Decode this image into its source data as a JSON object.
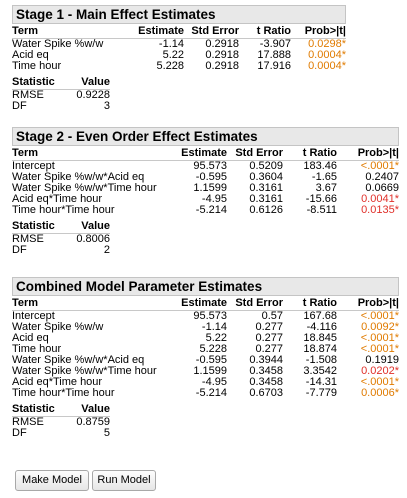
{
  "stage1": {
    "title": "Stage 1 - Main Effect Estimates",
    "headers": [
      "Term",
      "Estimate",
      "Std Error",
      "t Ratio",
      "Prob>|t|"
    ],
    "rows": [
      {
        "term": "Water Spike %w/w",
        "estimate": "-1.14",
        "se": "0.2918",
        "t": "-3.907",
        "p": "0.0298*"
      },
      {
        "term": "Acid eq",
        "estimate": "5.22",
        "se": "0.2918",
        "t": "17.888",
        "p": "0.0004*"
      },
      {
        "term": "Time hour",
        "estimate": "5.228",
        "se": "0.2918",
        "t": "17.916",
        "p": "0.0004*"
      }
    ],
    "stat_headers": [
      "Statistic",
      "Value"
    ],
    "stats": [
      {
        "k": "RMSE",
        "v": "0.9228"
      },
      {
        "k": "DF",
        "v": "3"
      }
    ]
  },
  "stage2": {
    "title": "Stage 2 - Even Order Effect Estimates",
    "headers": [
      "Term",
      "Estimate",
      "Std Error",
      "t Ratio",
      "Prob>|t|"
    ],
    "rows": [
      {
        "term": "Intercept",
        "estimate": "95.573",
        "se": "0.5209",
        "t": "183.46",
        "p": "<.0001*"
      },
      {
        "term": "Water Spike %w/w*Acid eq",
        "estimate": "-0.595",
        "se": "0.3604",
        "t": "-1.65",
        "p": "0.2407"
      },
      {
        "term": "Water Spike %w/w*Time hour",
        "estimate": "1.1599",
        "se": "0.3161",
        "t": "3.67",
        "p": "0.0669"
      },
      {
        "term": "Acid eq*Time hour",
        "estimate": "-4.95",
        "se": "0.3161",
        "t": "-15.66",
        "p": "0.0041*"
      },
      {
        "term": "Time hour*Time hour",
        "estimate": "-5.214",
        "se": "0.6126",
        "t": "-8.511",
        "p": "0.0135*"
      }
    ],
    "stat_headers": [
      "Statistic",
      "Value"
    ],
    "stats": [
      {
        "k": "RMSE",
        "v": "0.8006"
      },
      {
        "k": "DF",
        "v": "2"
      }
    ]
  },
  "combined": {
    "title": "Combined Model Parameter Estimates",
    "headers": [
      "Term",
      "Estimate",
      "Std Error",
      "t Ratio",
      "Prob>|t|"
    ],
    "rows": [
      {
        "term": "Intercept",
        "estimate": "95.573",
        "se": "0.57",
        "t": "167.68",
        "p": "<.0001*"
      },
      {
        "term": "Water Spike %w/w",
        "estimate": "-1.14",
        "se": "0.277",
        "t": "-4.116",
        "p": "0.0092*"
      },
      {
        "term": "Acid eq",
        "estimate": "5.22",
        "se": "0.277",
        "t": "18.845",
        "p": "<.0001*"
      },
      {
        "term": "Time hour",
        "estimate": "5.228",
        "se": "0.277",
        "t": "18.874",
        "p": "<.0001*"
      },
      {
        "term": "Water Spike %w/w*Acid eq",
        "estimate": "-0.595",
        "se": "0.3944",
        "t": "-1.508",
        "p": "0.1919"
      },
      {
        "term": "Water Spike %w/w*Time hour",
        "estimate": "1.1599",
        "se": "0.3458",
        "t": "3.3542",
        "p": "0.0202*"
      },
      {
        "term": "Acid eq*Time hour",
        "estimate": "-4.95",
        "se": "0.3458",
        "t": "-14.31",
        "p": "<.0001*"
      },
      {
        "term": "Time hour*Time hour",
        "estimate": "-5.214",
        "se": "0.6703",
        "t": "-7.779",
        "p": "0.0006*"
      }
    ],
    "stat_headers": [
      "Statistic",
      "Value"
    ],
    "stats": [
      {
        "k": "RMSE",
        "v": "0.8759"
      },
      {
        "k": "DF",
        "v": "5"
      }
    ]
  },
  "buttons": {
    "make_model": "Make Model",
    "run_model": "Run Model"
  },
  "colors": {
    "significant_orange": "#e07b00",
    "significant_red": "#e0302a",
    "title_bg": "#e8e8e8"
  }
}
